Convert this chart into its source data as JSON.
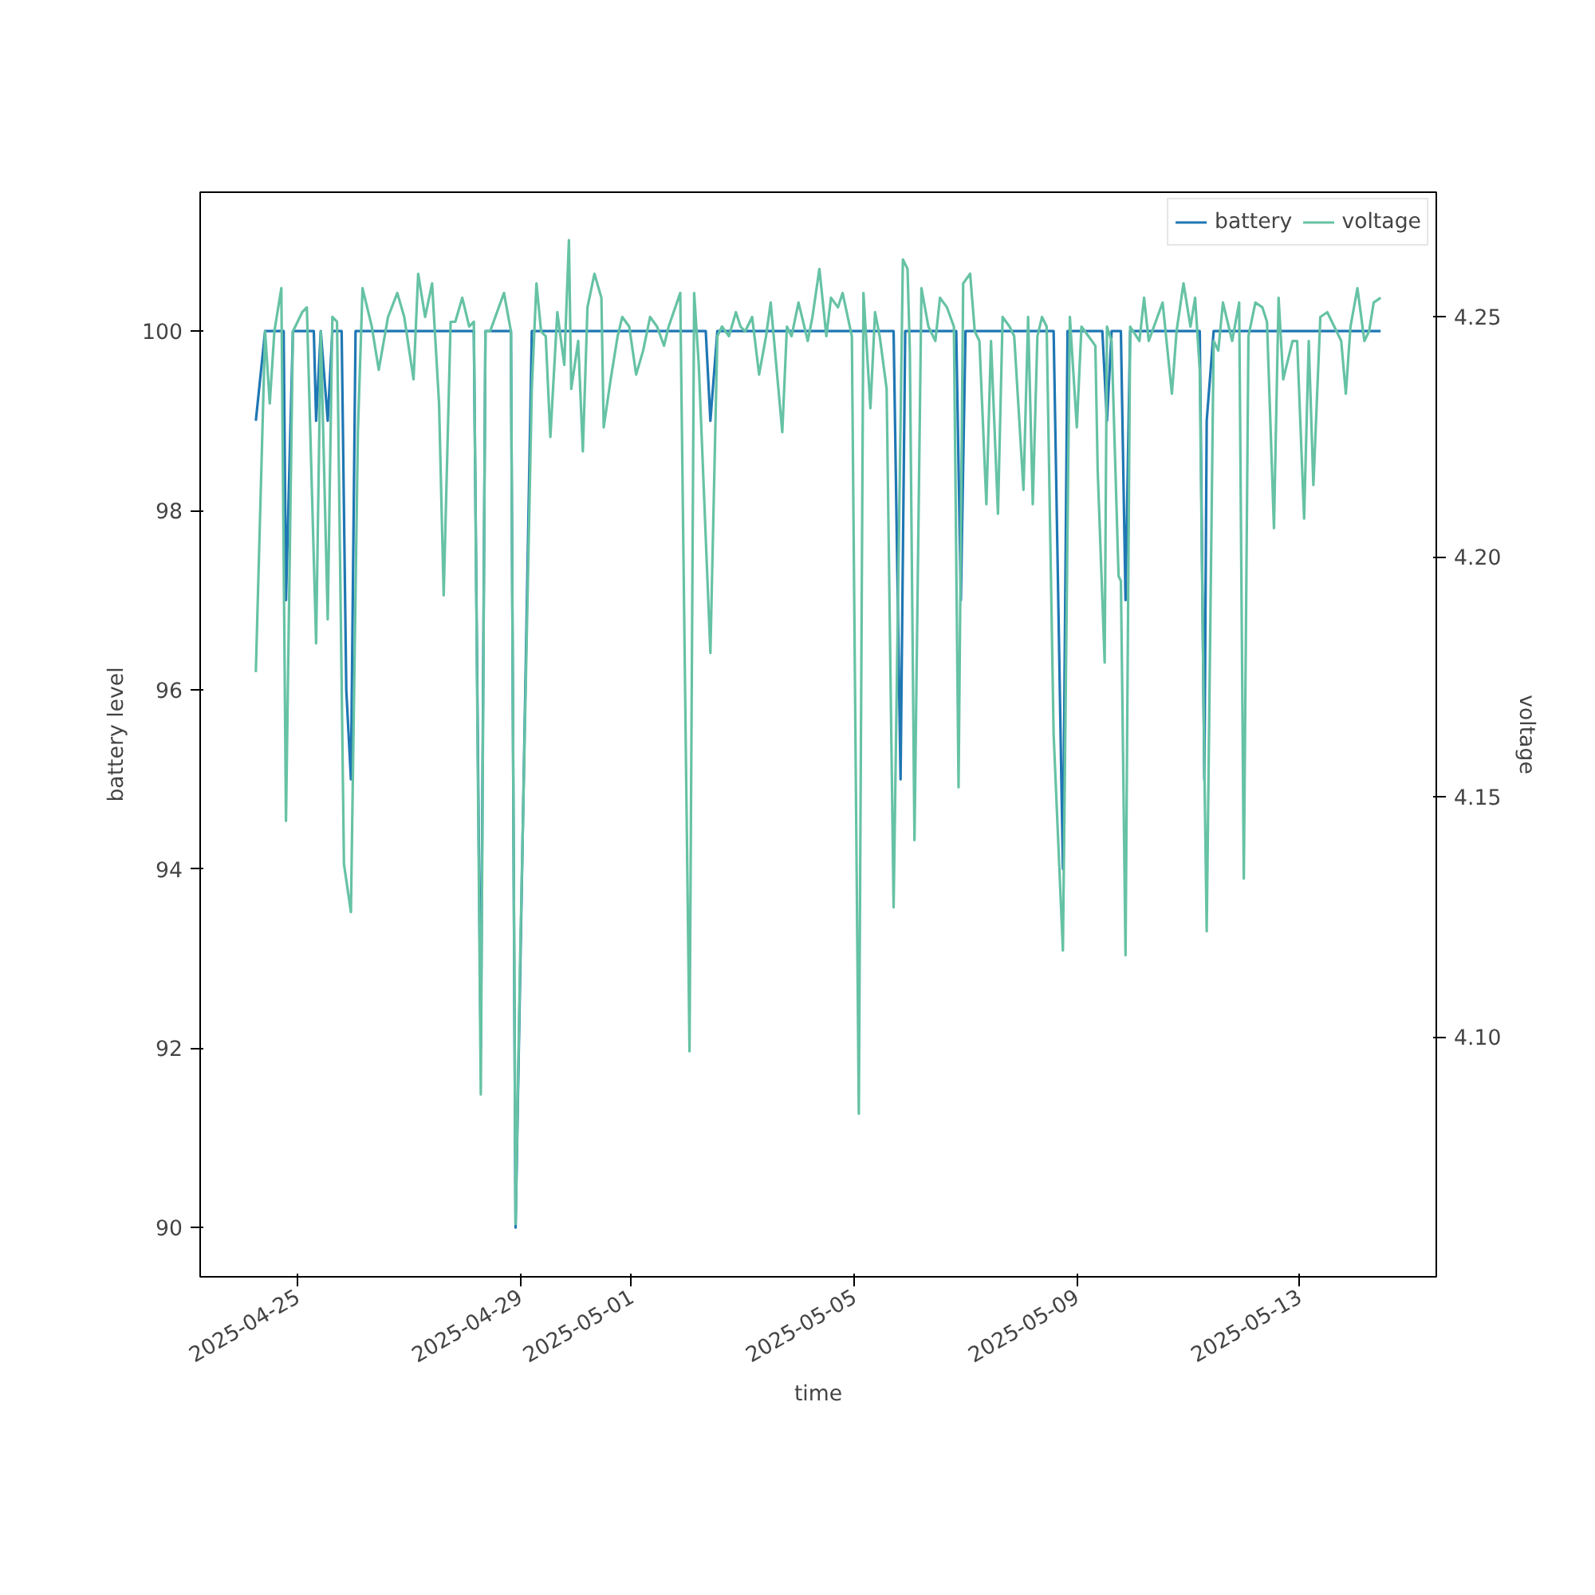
{
  "chart_data": {
    "type": "line",
    "xlabel": "time",
    "ylabel": "battery level",
    "y2label": "voltage",
    "xlim": [
      "2025-04-23T06:00",
      "2025-05-15T11:00"
    ],
    "xticks": [
      {
        "value": "2025-04-25",
        "label": "2025-04-25"
      },
      {
        "value": "2025-04-29",
        "label": "2025-04-29"
      },
      {
        "value": "2025-05-01",
        "label": "2025-05-01"
      },
      {
        "value": "2025-05-05",
        "label": "2025-05-05"
      },
      {
        "value": "2025-05-09",
        "label": "2025-05-09"
      },
      {
        "value": "2025-05-13",
        "label": "2025-05-13"
      }
    ],
    "ylim": [
      89.45,
      101.55
    ],
    "yticks": [
      90,
      92,
      94,
      96,
      98,
      100
    ],
    "y2lim": [
      4.05,
      4.276
    ],
    "y2ticks": [
      {
        "value": 4.1,
        "label": "4.10"
      },
      {
        "value": 4.15,
        "label": "4.15"
      },
      {
        "value": 4.2,
        "label": "4.20"
      },
      {
        "value": 4.25,
        "label": "4.25"
      }
    ],
    "grid": false,
    "legend": "top right",
    "line_style": "solid",
    "marker": "none",
    "series": [
      {
        "name": "battery",
        "color": "#1f77b4",
        "x": [
          "2025-04-24T06:00",
          "2025-04-24T10:00",
          "2025-04-24T18:00",
          "2025-04-24T19:00",
          "2025-04-24T22:00",
          "2025-04-25T07:00",
          "2025-04-25T08:00",
          "2025-04-25T10:00",
          "2025-04-25T13:00",
          "2025-04-25T15:00",
          "2025-04-25T19:00",
          "2025-04-25T21:00",
          "2025-04-25T23:00",
          "2025-04-26T01:00",
          "2025-04-28T04:00",
          "2025-04-28T07:00",
          "2025-04-28T09:00",
          "2025-04-28T20:00",
          "2025-04-28T22:00",
          "2025-04-29T05:00",
          "2025-05-02T08:00",
          "2025-05-02T10:00",
          "2025-05-02T13:00",
          "2025-05-05T17:00",
          "2025-05-05T20:00",
          "2025-05-05T22:00",
          "2025-05-06T20:00",
          "2025-05-06T22:00",
          "2025-05-07T00:00",
          "2025-05-08T14:00",
          "2025-05-08T18:00",
          "2025-05-08T20:00",
          "2025-05-09T11:00",
          "2025-05-09T13:00",
          "2025-05-09T15:00",
          "2025-05-09T19:00",
          "2025-05-09T21:00",
          "2025-05-09T23:00",
          "2025-05-11T05:00",
          "2025-05-11T07:00",
          "2025-05-11T08:00",
          "2025-05-11T11:00",
          "2025-05-14T11:00"
        ],
        "values": [
          99,
          100,
          100,
          97,
          100,
          100,
          99,
          100,
          99,
          100,
          100,
          96,
          95,
          100,
          100,
          92,
          100,
          100,
          90,
          100,
          100,
          99,
          100,
          100,
          95,
          100,
          100,
          97,
          100,
          100,
          94,
          100,
          100,
          99,
          100,
          100,
          97,
          100,
          100,
          95,
          99,
          100,
          100
        ]
      },
      {
        "name": "voltage",
        "color": "#66c2a5",
        "axis": "y2",
        "x": [
          "2025-04-24T06:00",
          "2025-04-24T10:00",
          "2025-04-24T12:00",
          "2025-04-24T14:00",
          "2025-04-24T17:00",
          "2025-04-24T19:00",
          "2025-04-24T22:00",
          "2025-04-25T02:00",
          "2025-04-25T04:00",
          "2025-04-25T08:00",
          "2025-04-25T10:00",
          "2025-04-25T13:00",
          "2025-04-25T15:00",
          "2025-04-25T17:00",
          "2025-04-25T20:00",
          "2025-04-25T23:00",
          "2025-04-26T02:00",
          "2025-04-26T04:00",
          "2025-04-26T08:00",
          "2025-04-26T11:00",
          "2025-04-26T15:00",
          "2025-04-26T19:00",
          "2025-04-26T22:00",
          "2025-04-27T02:00",
          "2025-04-27T04:00",
          "2025-04-27T07:00",
          "2025-04-27T10:00",
          "2025-04-27T13:00",
          "2025-04-27T15:00",
          "2025-04-27T18:00",
          "2025-04-27T20:00",
          "2025-04-27T23:00",
          "2025-04-28T02:00",
          "2025-04-28T04:00",
          "2025-04-28T07:00",
          "2025-04-28T09:00",
          "2025-04-28T11:00",
          "2025-04-28T17:00",
          "2025-04-28T20:00",
          "2025-04-28T22:00",
          "2025-04-29T00:00",
          "2025-04-29T05:00",
          "2025-04-29T07:00",
          "2025-04-29T09:00",
          "2025-04-29T11:00",
          "2025-04-29T13:00",
          "2025-04-29T16:00",
          "2025-04-29T19:00",
          "2025-04-29T21:00",
          "2025-04-29T22:00",
          "2025-04-30T01:00",
          "2025-04-30T03:00",
          "2025-04-30T05:00",
          "2025-04-30T08:00",
          "2025-04-30T11:00",
          "2025-04-30T12:00",
          "2025-04-30T15:00",
          "2025-04-30T18:00",
          "2025-04-30T20:00",
          "2025-04-30T23:00",
          "2025-05-01T02:00",
          "2025-05-01T05:00",
          "2025-05-01T08:00",
          "2025-05-01T11:00",
          "2025-05-01T14:00",
          "2025-05-01T16:00",
          "2025-05-01T21:00",
          "2025-05-02T01:00",
          "2025-05-02T03:00",
          "2025-05-02T05:00",
          "2025-05-02T10:00",
          "2025-05-02T13:00",
          "2025-05-02T15:00",
          "2025-05-02T18:00",
          "2025-05-02T21:00",
          "2025-05-02T23:00",
          "2025-05-03T01:00",
          "2025-05-03T04:00",
          "2025-05-03T07:00",
          "2025-05-03T10:00",
          "2025-05-03T12:00",
          "2025-05-03T17:00",
          "2025-05-03T19:00",
          "2025-05-03T21:00",
          "2025-05-04T00:00",
          "2025-05-04T04:00",
          "2025-05-04T06:00",
          "2025-05-04T09:00",
          "2025-05-04T12:00",
          "2025-05-04T14:00",
          "2025-05-04T17:00",
          "2025-05-04T19:00",
          "2025-05-04T23:00",
          "2025-05-05T02:00",
          "2025-05-05T04:00",
          "2025-05-05T07:00",
          "2025-05-05T09:00",
          "2025-05-05T11:00",
          "2025-05-05T14:00",
          "2025-05-05T17:00",
          "2025-05-05T21:00",
          "2025-05-05T23:00",
          "2025-05-06T00:00",
          "2025-05-06T02:00",
          "2025-05-06T05:00",
          "2025-05-06T08:00",
          "2025-05-06T11:00",
          "2025-05-06T13:00",
          "2025-05-06T16:00",
          "2025-05-06T19:00",
          "2025-05-06T21:00",
          "2025-05-06T23:00",
          "2025-05-07T02:00",
          "2025-05-07T04:00",
          "2025-05-07T06:00",
          "2025-05-07T09:00",
          "2025-05-07T11:00",
          "2025-05-07T14:00",
          "2025-05-07T16:00",
          "2025-05-07T19:00",
          "2025-05-07T21:00",
          "2025-05-08T01:00",
          "2025-05-08T03:00",
          "2025-05-08T05:00",
          "2025-05-08T07:00",
          "2025-05-08T09:00",
          "2025-05-08T11:00",
          "2025-05-08T14:00",
          "2025-05-08T18:00",
          "2025-05-08T21:00",
          "2025-05-09T00:00",
          "2025-05-09T02:00",
          "2025-05-09T05:00",
          "2025-05-09T08:00",
          "2025-05-09T09:00",
          "2025-05-09T12:00",
          "2025-05-09T13:00",
          "2025-05-09T15:00",
          "2025-05-09T18:00",
          "2025-05-09T19:00",
          "2025-05-09T21:00",
          "2025-05-09T23:00",
          "2025-05-10T03:00",
          "2025-05-10T05:00",
          "2025-05-10T07:00",
          "2025-05-10T10:00",
          "2025-05-10T13:00",
          "2025-05-10T17:00",
          "2025-05-10T19:00",
          "2025-05-10T22:00",
          "2025-05-11T01:00",
          "2025-05-11T03:00",
          "2025-05-11T05:00",
          "2025-05-11T07:00",
          "2025-05-11T08:00",
          "2025-05-11T11:00",
          "2025-05-11T13:00",
          "2025-05-11T15:00",
          "2025-05-11T19:00",
          "2025-05-11T22:00",
          "2025-05-12T00:00",
          "2025-05-12T02:00",
          "2025-05-12T05:00",
          "2025-05-12T08:00",
          "2025-05-12T10:00",
          "2025-05-12T13:00",
          "2025-05-12T15:00",
          "2025-05-12T17:00",
          "2025-05-12T21:00",
          "2025-05-12T23:00",
          "2025-05-13T02:00",
          "2025-05-13T04:00",
          "2025-05-13T06:00",
          "2025-05-13T09:00",
          "2025-05-13T12:00",
          "2025-05-13T14:00",
          "2025-05-13T18:00",
          "2025-05-13T20:00",
          "2025-05-13T22:00",
          "2025-05-14T01:00",
          "2025-05-14T04:00",
          "2025-05-14T06:00",
          "2025-05-14T08:00",
          "2025-05-14T11:00"
        ],
        "values": [
          4.176,
          4.247,
          4.232,
          4.247,
          4.256,
          4.145,
          4.247,
          4.251,
          4.252,
          4.182,
          4.247,
          4.187,
          4.25,
          4.249,
          4.136,
          4.126,
          4.226,
          4.256,
          4.248,
          4.239,
          4.25,
          4.255,
          4.25,
          4.237,
          4.259,
          4.25,
          4.257,
          4.232,
          4.192,
          4.249,
          4.249,
          4.254,
          4.248,
          4.249,
          4.088,
          4.247,
          4.247,
          4.255,
          4.247,
          4.061,
          4.117,
          4.235,
          4.257,
          4.247,
          4.246,
          4.225,
          4.251,
          4.24,
          4.266,
          4.235,
          4.245,
          4.222,
          4.252,
          4.259,
          4.254,
          4.227,
          4.237,
          4.246,
          4.25,
          4.248,
          4.238,
          4.243,
          4.25,
          4.248,
          4.244,
          4.248,
          4.255,
          4.097,
          4.255,
          4.24,
          4.18,
          4.246,
          4.248,
          4.246,
          4.251,
          4.248,
          4.247,
          4.25,
          4.238,
          4.246,
          4.253,
          4.226,
          4.248,
          4.246,
          4.253,
          4.245,
          4.25,
          4.26,
          4.246,
          4.254,
          4.252,
          4.255,
          4.246,
          4.084,
          4.255,
          4.231,
          4.251,
          4.246,
          4.235,
          4.127,
          4.262,
          4.26,
          4.243,
          4.141,
          4.256,
          4.248,
          4.245,
          4.254,
          4.252,
          4.248,
          4.152,
          4.257,
          4.259,
          4.247,
          4.245,
          4.211,
          4.245,
          4.209,
          4.25,
          4.248,
          4.246,
          4.214,
          4.25,
          4.211,
          4.246,
          4.25,
          4.248,
          4.163,
          4.118,
          4.25,
          4.227,
          4.248,
          4.246,
          4.244,
          4.218,
          4.178,
          4.248,
          4.245,
          4.196,
          4.195,
          4.117,
          4.248,
          4.245,
          4.254,
          4.245,
          4.249,
          4.253,
          4.234,
          4.247,
          4.257,
          4.248,
          4.254,
          4.239,
          4.156,
          4.122,
          4.245,
          4.243,
          4.253,
          4.245,
          4.253,
          4.133,
          4.246,
          4.253,
          4.252,
          4.249,
          4.206,
          4.254,
          4.237,
          4.245,
          4.245,
          4.208,
          4.245,
          4.215,
          4.25,
          4.251,
          4.249,
          4.245,
          4.234,
          4.248,
          4.256,
          4.245,
          4.247,
          4.253,
          4.254
        ]
      }
    ]
  }
}
